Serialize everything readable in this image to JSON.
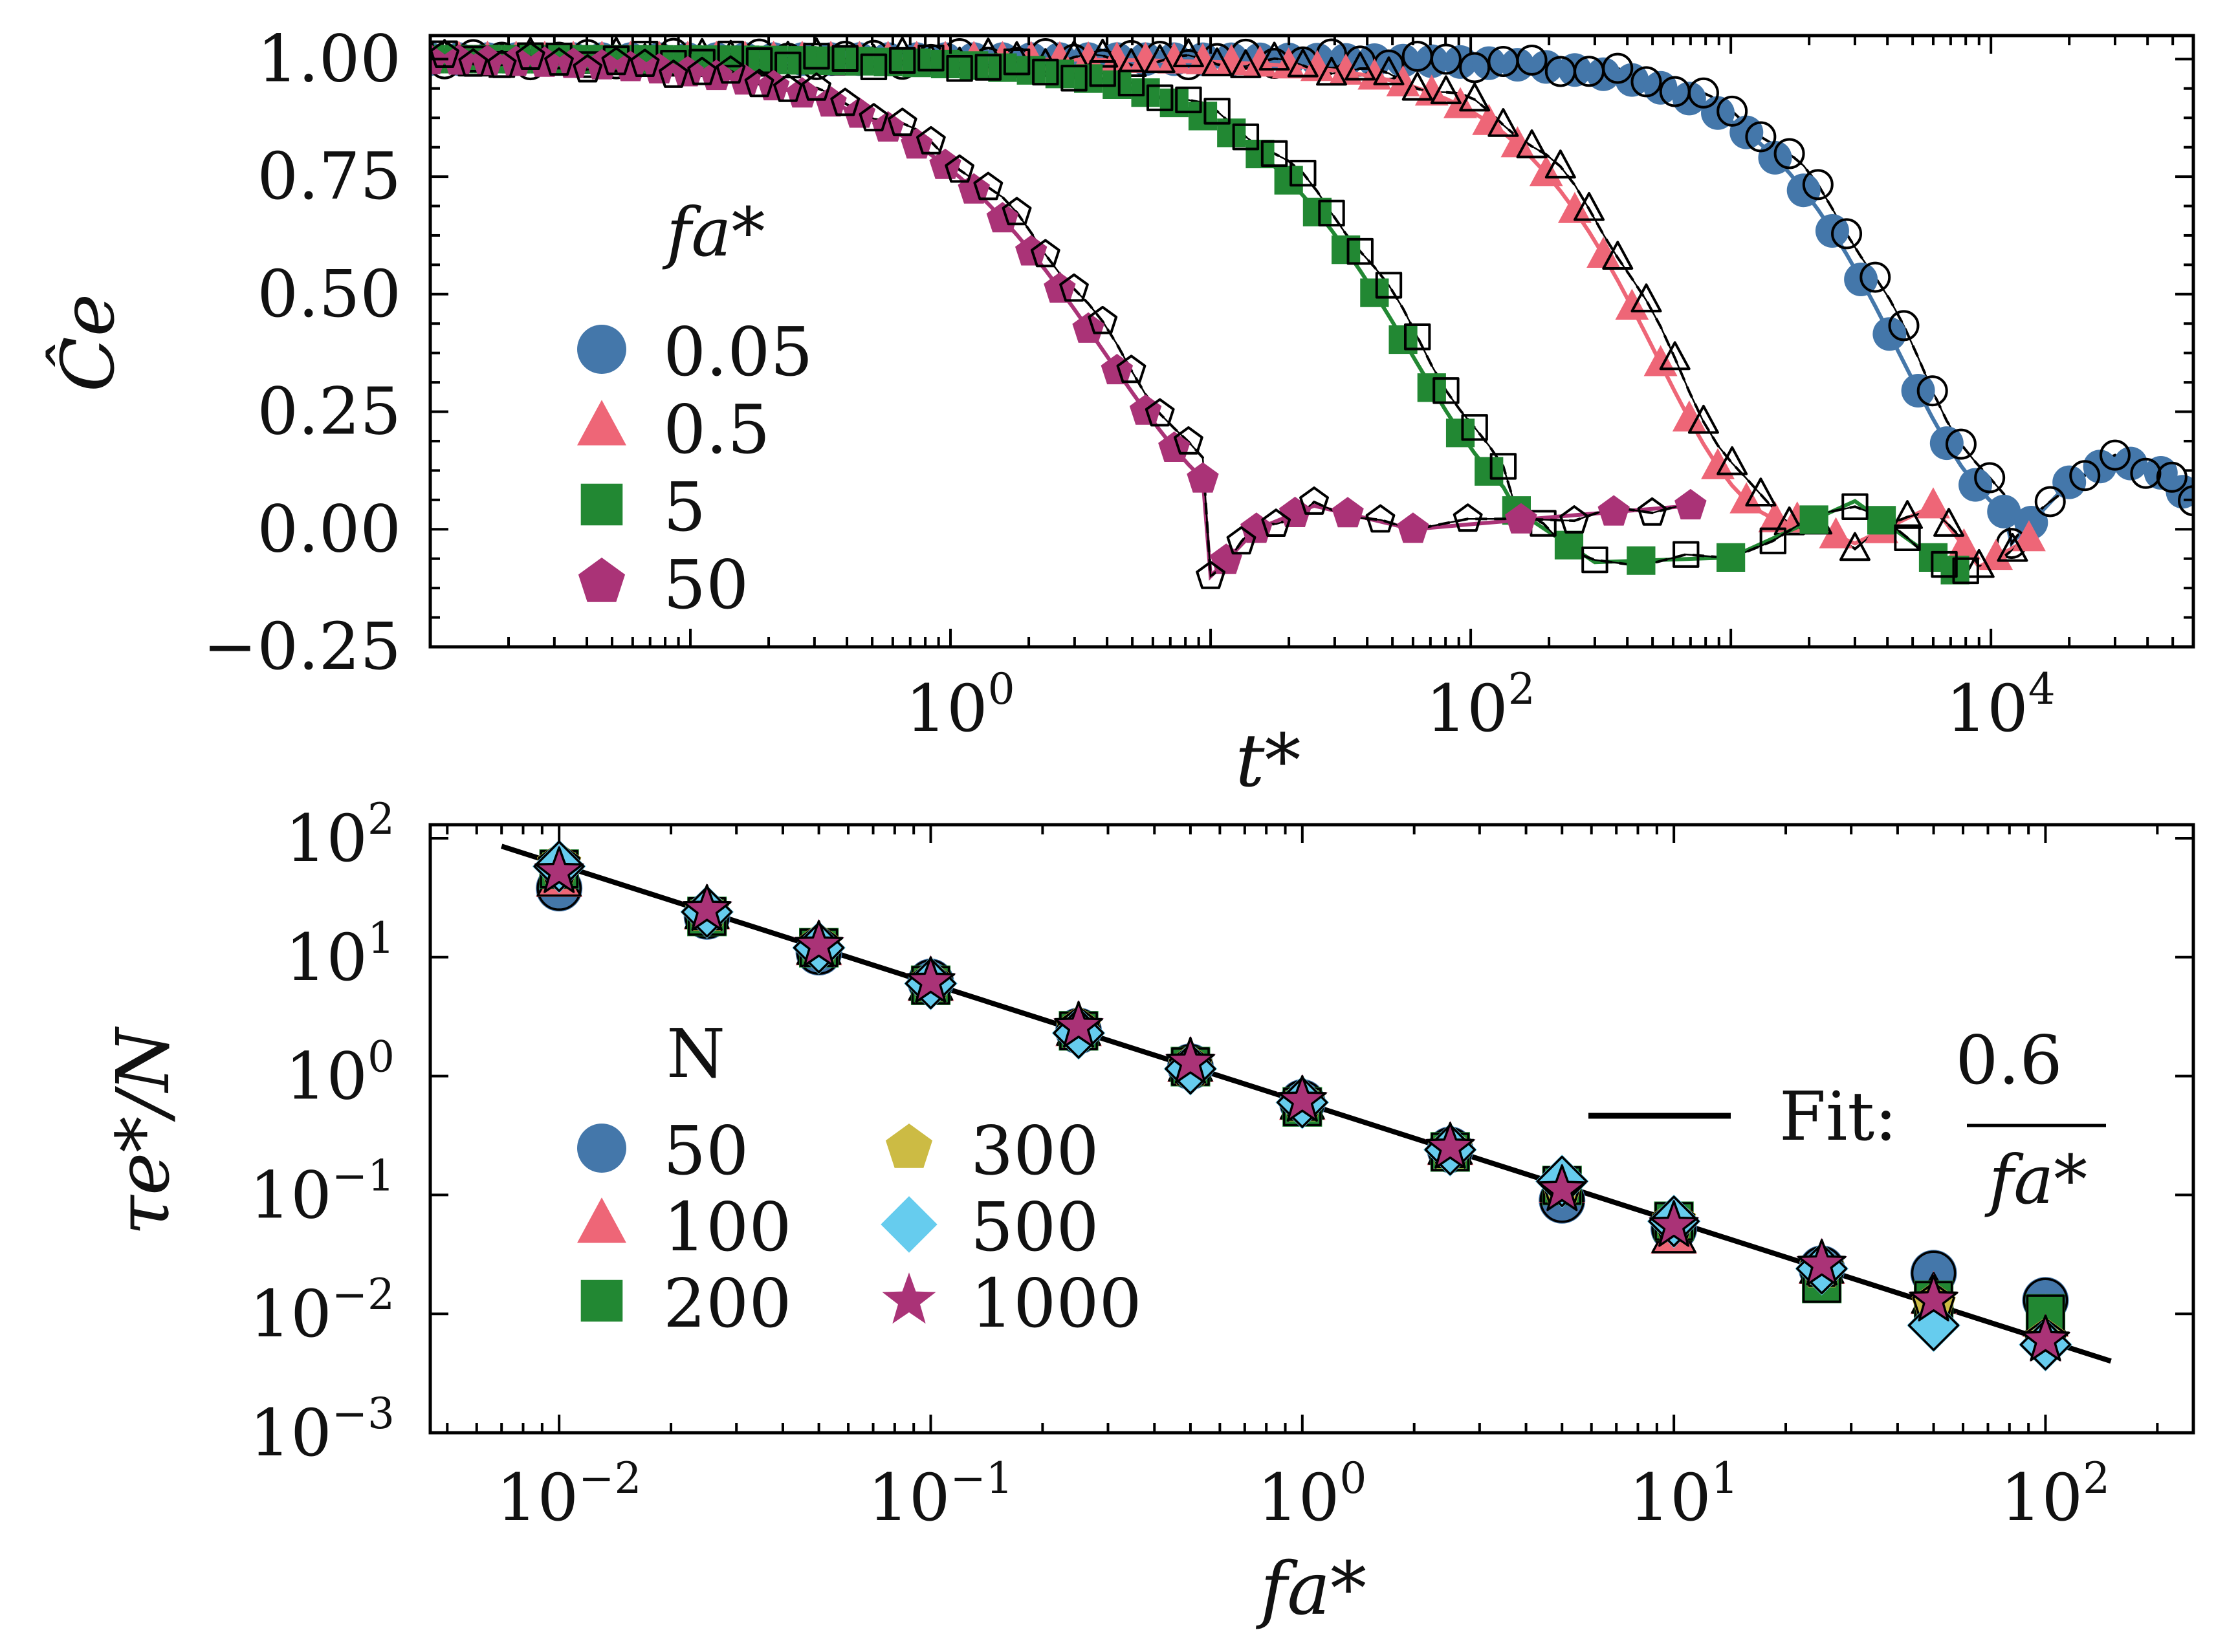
{
  "colors": {
    "blue": "#4477AA",
    "red": "#EE6677",
    "green": "#228833",
    "yellow": "#CCBB44",
    "cyan": "#66CCEE",
    "purple": "#AA3377",
    "black": "#000000"
  },
  "chart_data": [
    {
      "type": "scatter",
      "title": "",
      "xlabel": "t*",
      "ylabel": "Ĉe",
      "xscale": "log",
      "xlim": [
        0.01,
        60000
      ],
      "ylim": [
        -0.25,
        1.05
      ],
      "x_ticks": [
        1,
        100,
        10000
      ],
      "x_tick_labels": [
        "10⁰",
        "10²",
        "10⁴"
      ],
      "y_ticks": [
        1.0,
        0.75,
        0.5,
        0.25,
        0.0,
        -0.25
      ],
      "y_tick_labels": [
        "1.00",
        "0.75",
        "0.50",
        "0.25",
        "0.00",
        "−0.25"
      ],
      "legend_title": "fa*",
      "legend_position": "left",
      "series": [
        {
          "name": "0.05",
          "color": "#4477AA",
          "marker": "circle",
          "tau": 4500,
          "beta": 1.3,
          "tail": [
            [
              12000,
              -0.03
            ],
            [
              20000,
              0.1
            ],
            [
              30000,
              0.15
            ],
            [
              45000,
              0.12
            ],
            [
              60000,
              0.06
            ]
          ]
        },
        {
          "name": "0.5",
          "color": "#EE6677",
          "marker": "triangle",
          "tau": 520,
          "beta": 1.3,
          "tail": [
            [
              1800,
              0.02
            ],
            [
              3000,
              -0.03
            ],
            [
              6000,
              0.05
            ],
            [
              9000,
              -0.08
            ],
            [
              14000,
              -0.02
            ]
          ]
        },
        {
          "name": "5",
          "color": "#228833",
          "marker": "square",
          "tau": 60,
          "beta": 1.1,
          "tail": [
            [
              150,
              0.04
            ],
            [
              300,
              -0.07
            ],
            [
              1000,
              -0.06
            ],
            [
              3000,
              0.06
            ],
            [
              6000,
              -0.06
            ],
            [
              8000,
              -0.1
            ]
          ]
        },
        {
          "name": "50",
          "color": "#AA3377",
          "marker": "pentagon",
          "tau": 4,
          "beta": 0.95,
          "tail": [
            [
              10,
              -0.1
            ],
            [
              15,
              0.0
            ],
            [
              25,
              0.05
            ],
            [
              60,
              0.0
            ],
            [
              250,
              0.03
            ],
            [
              700,
              0.05
            ]
          ]
        }
      ]
    },
    {
      "type": "scatter",
      "title": "",
      "xlabel": "fa*",
      "ylabel": "τe*/N",
      "xscale": "log",
      "yscale": "log",
      "xlim": [
        0.0045,
        250
      ],
      "ylim": [
        0.001,
        130
      ],
      "x_ticks": [
        0.01,
        0.1,
        1,
        10,
        100
      ],
      "x_tick_labels": [
        "10⁻²",
        "10⁻¹",
        "10⁰",
        "10¹",
        "10²"
      ],
      "y_ticks": [
        100,
        10,
        1,
        0.1,
        0.01,
        0.001
      ],
      "y_tick_labels": [
        "10²",
        "10¹",
        "10⁰",
        "10⁻¹",
        "10⁻²",
        "10⁻³"
      ],
      "x": [
        0.01,
        0.025,
        0.05,
        0.1,
        0.25,
        0.5,
        1,
        2.5,
        5,
        10,
        25,
        50,
        100
      ],
      "legend_title": "N",
      "legend_position": "center-left",
      "series": [
        {
          "name": "50",
          "color": "#4477AA",
          "marker": "circle",
          "values": [
            38,
            22,
            11,
            6.2,
            2.4,
            1.2,
            0.6,
            0.24,
            0.09,
            0.052,
            0.024,
            0.022,
            0.013
          ]
        },
        {
          "name": "100",
          "color": "#EE6677",
          "marker": "triangle",
          "values": [
            45,
            24,
            12,
            6.0,
            2.5,
            1.25,
            0.6,
            0.25,
            0.12,
            0.045,
            0.025,
            0.014,
            0.009
          ]
        },
        {
          "name": "200",
          "color": "#228833",
          "marker": "square",
          "values": [
            55,
            22,
            12,
            5.8,
            2.4,
            1.2,
            0.55,
            0.23,
            0.12,
            0.06,
            0.018,
            0.013,
            0.01
          ]
        },
        {
          "name": "300",
          "color": "#CCBB44",
          "marker": "pentagon",
          "values": [
            60,
            24,
            12.5,
            6.1,
            2.5,
            1.2,
            0.6,
            0.24,
            0.12,
            0.06,
            0.024,
            0.012,
            0.006
          ]
        },
        {
          "name": "500",
          "color": "#66CCEE",
          "marker": "diamond",
          "values": [
            58,
            24,
            12,
            6.0,
            2.3,
            1.15,
            0.6,
            0.24,
            0.13,
            0.06,
            0.024,
            0.008,
            0.0055
          ]
        },
        {
          "name": "1000",
          "color": "#AA3377",
          "marker": "star",
          "values": [
            52,
            25,
            12.5,
            6.2,
            2.6,
            1.3,
            0.62,
            0.25,
            0.11,
            0.055,
            0.026,
            0.013,
            0.006
          ]
        }
      ],
      "fit": {
        "label": "Fit:",
        "numerator": "0.6",
        "denominator": "fa*",
        "coefficient": 0.6,
        "x_range": [
          0.007,
          150
        ]
      }
    }
  ]
}
